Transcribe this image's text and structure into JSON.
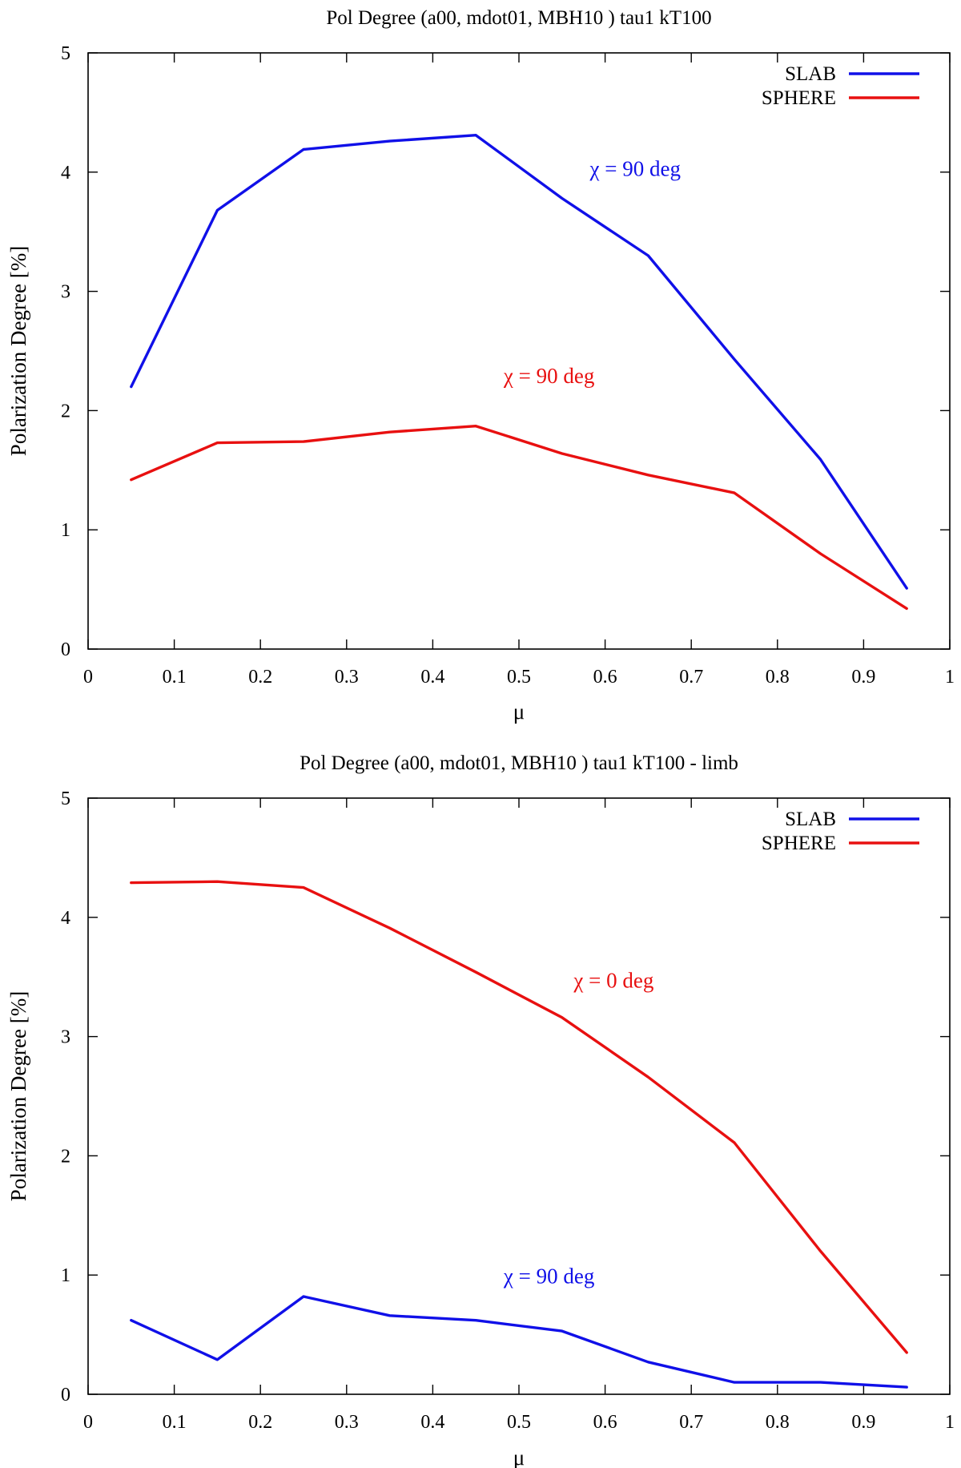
{
  "colors": {
    "slab": "#1010e8",
    "sphere": "#e81010"
  },
  "chart_data": [
    {
      "type": "line",
      "title": "Pol Degree (a00, mdot01, MBH10 ) tau1 kT100",
      "xlabel": "μ",
      "ylabel": "Polarization Degree [%]",
      "xlim": [
        0,
        1
      ],
      "ylim": [
        0,
        5
      ],
      "xticks": [
        "0",
        "0.1",
        "0.2",
        "0.3",
        "0.4",
        "0.5",
        "0.6",
        "0.7",
        "0.8",
        "0.9",
        "1"
      ],
      "yticks": [
        "0",
        "1",
        "2",
        "3",
        "4",
        "5"
      ],
      "x": [
        0.05,
        0.15,
        0.25,
        0.35,
        0.45,
        0.55,
        0.65,
        0.75,
        0.85,
        0.95
      ],
      "series": [
        {
          "name": "SLAB",
          "color": "#1010e8",
          "values": [
            2.2,
            3.68,
            4.19,
            4.26,
            4.31,
            3.78,
            3.3,
            2.43,
            1.59,
            0.51
          ]
        },
        {
          "name": "SPHERE",
          "color": "#e81010",
          "values": [
            1.42,
            1.73,
            1.74,
            1.82,
            1.87,
            1.64,
            1.46,
            1.31,
            0.8,
            0.34
          ]
        }
      ],
      "annotations": [
        {
          "text": "χ = 90 deg",
          "color": "#1010e8",
          "x": 0.635,
          "y": 3.97
        },
        {
          "text": "χ = 90 deg",
          "color": "#e81010",
          "x": 0.535,
          "y": 2.23
        }
      ],
      "legend": "top-right"
    },
    {
      "type": "line",
      "title": "Pol Degree (a00, mdot01, MBH10 ) tau1 kT100 - limb",
      "xlabel": "μ",
      "ylabel": "Polarization Degree [%]",
      "xlim": [
        0,
        1
      ],
      "ylim": [
        0,
        5
      ],
      "xticks": [
        "0",
        "0.1",
        "0.2",
        "0.3",
        "0.4",
        "0.5",
        "0.6",
        "0.7",
        "0.8",
        "0.9",
        "1"
      ],
      "yticks": [
        "0",
        "1",
        "2",
        "3",
        "4",
        "5"
      ],
      "x": [
        0.05,
        0.15,
        0.25,
        0.35,
        0.45,
        0.55,
        0.65,
        0.75,
        0.85,
        0.95
      ],
      "series": [
        {
          "name": "SLAB",
          "color": "#1010e8",
          "values": [
            0.62,
            0.29,
            0.82,
            0.66,
            0.62,
            0.53,
            0.27,
            0.1,
            0.1,
            0.06
          ]
        },
        {
          "name": "SPHERE",
          "color": "#e81010",
          "values": [
            4.29,
            4.3,
            4.25,
            3.91,
            3.54,
            3.16,
            2.66,
            2.11,
            1.2,
            0.35
          ]
        }
      ],
      "annotations": [
        {
          "text": "χ = 0 deg",
          "color": "#e81010",
          "x": 0.61,
          "y": 3.41
        },
        {
          "text": "χ = 90 deg",
          "color": "#1010e8",
          "x": 0.535,
          "y": 0.93
        }
      ],
      "legend": "top-right"
    }
  ]
}
